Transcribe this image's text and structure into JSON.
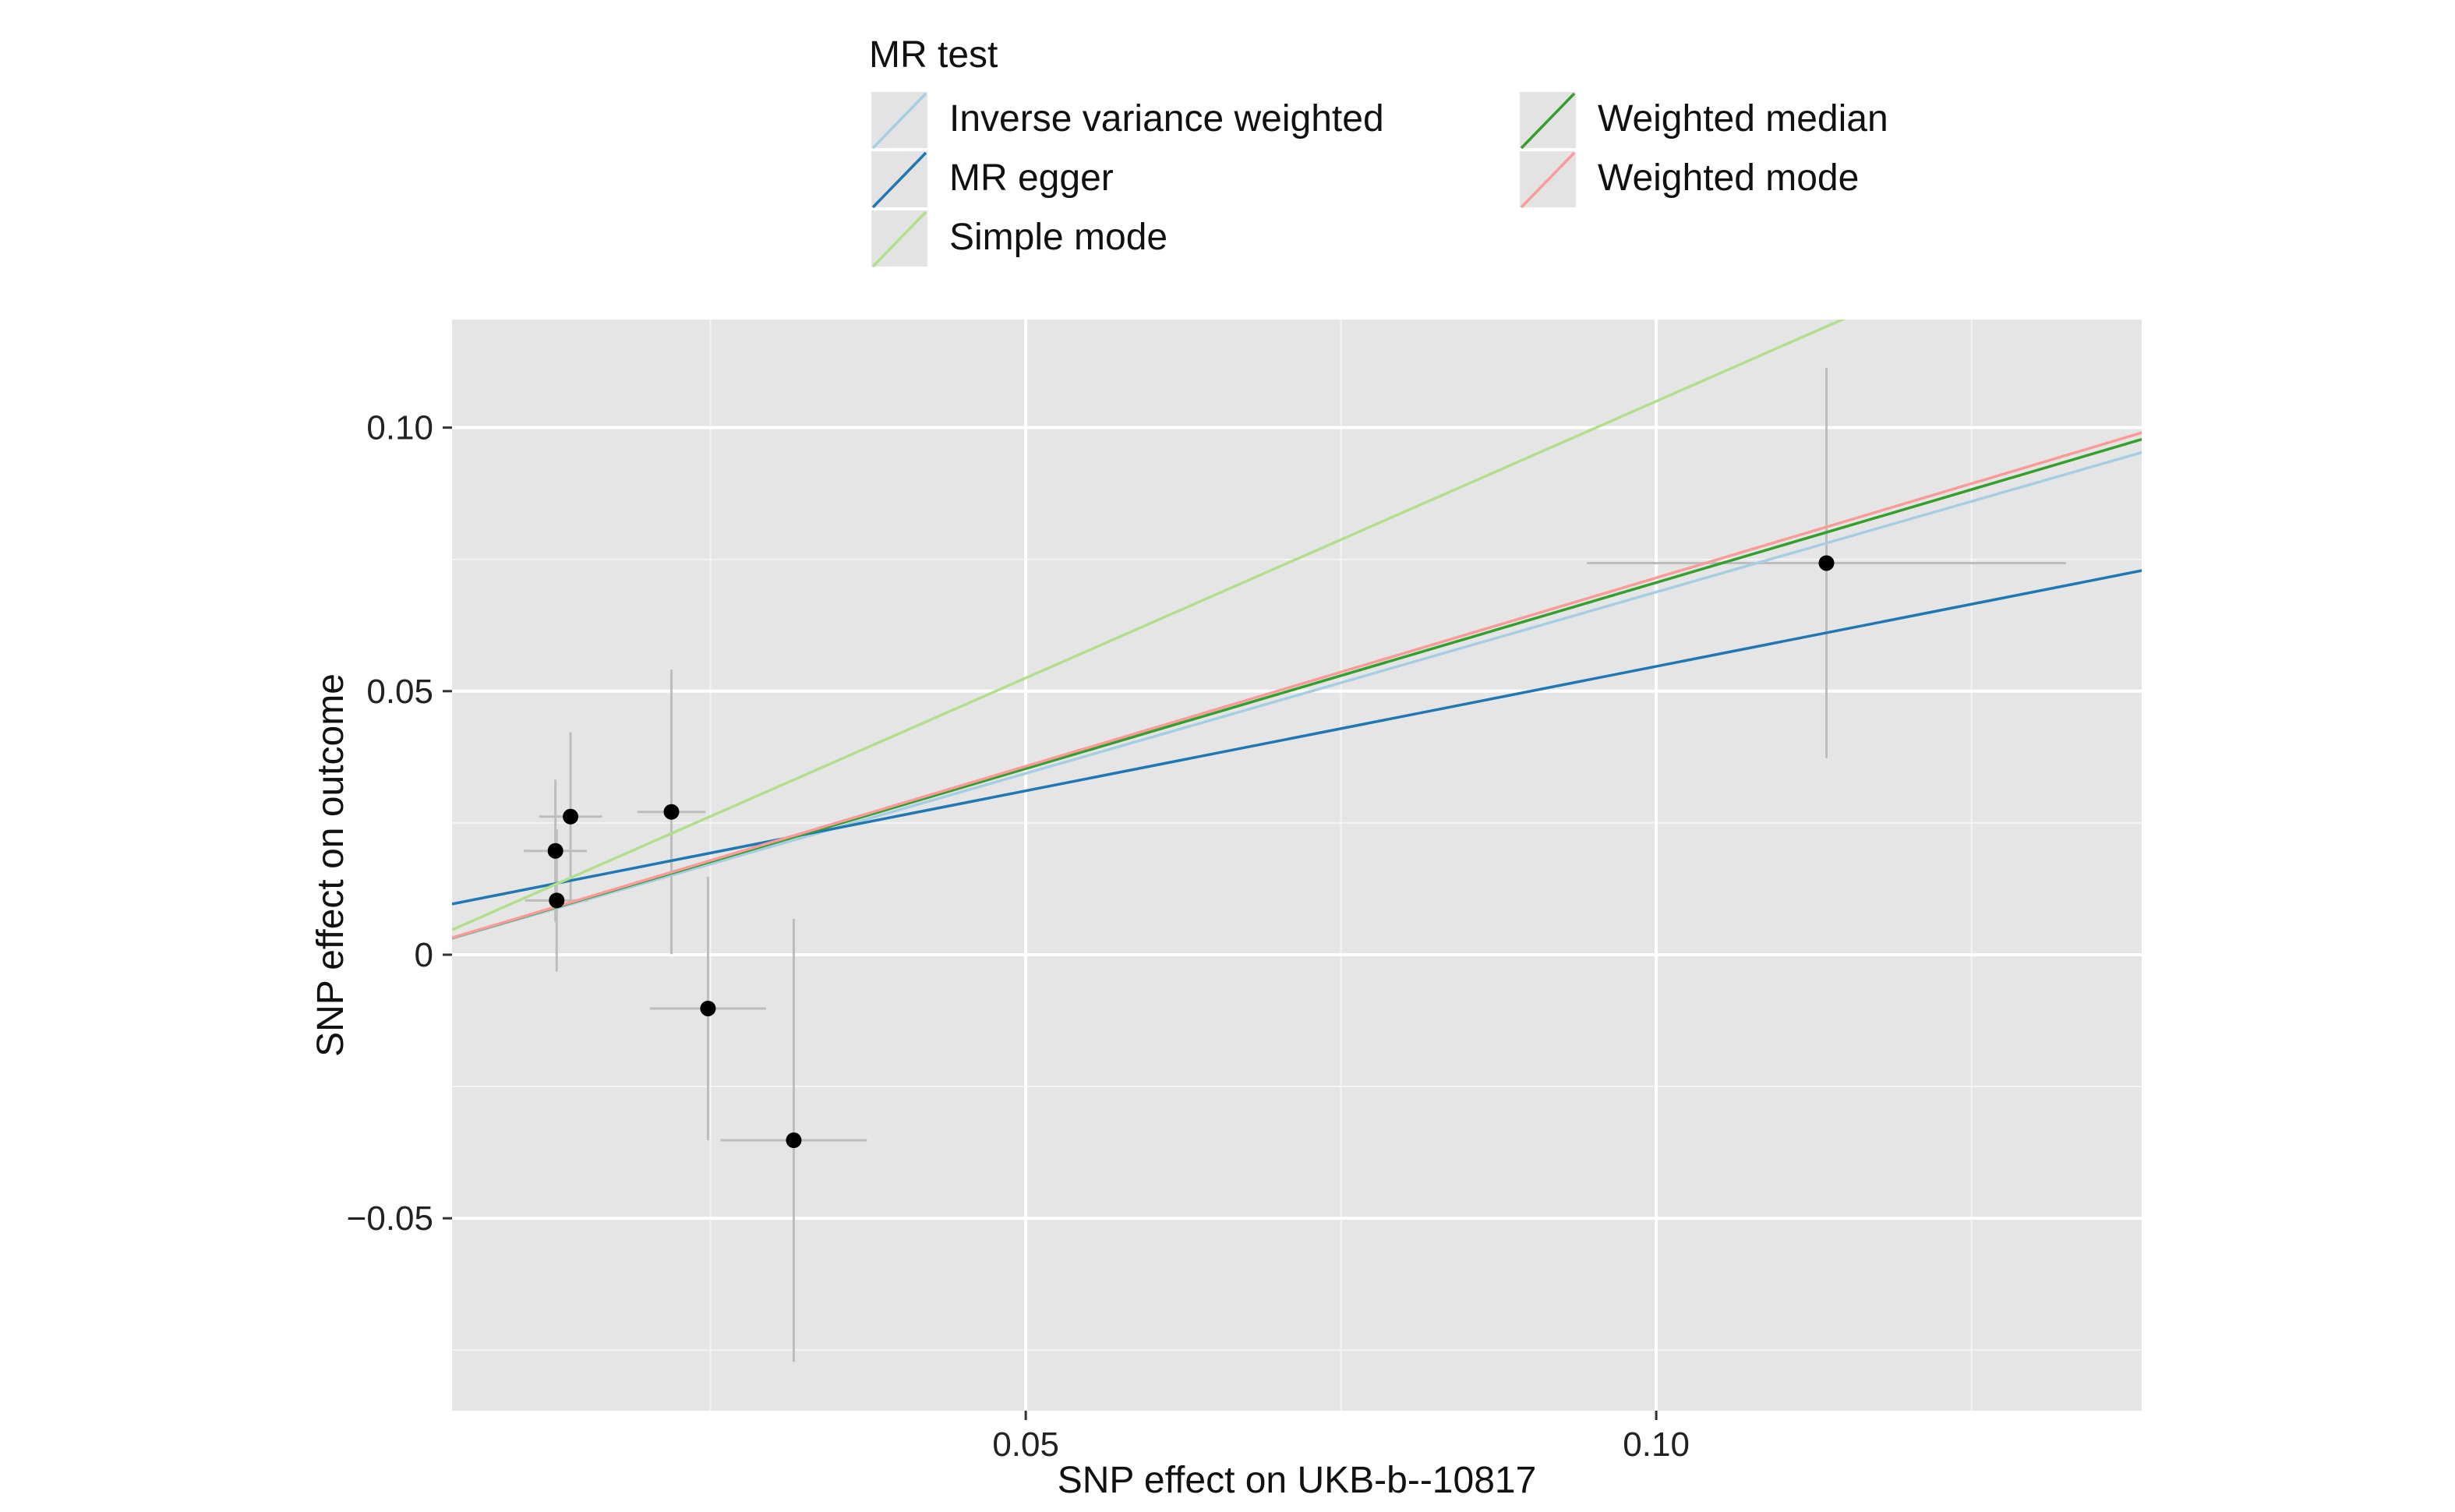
{
  "chart_data": {
    "type": "scatter",
    "xlabel": "SNP effect on UKB-b--10817",
    "ylabel": "SNP effect on outcome",
    "xlim": [
      0.0045,
      0.1385
    ],
    "ylim": [
      -0.0865,
      0.1205
    ],
    "xticks": [
      {
        "value": 0.05,
        "label": "0.05"
      },
      {
        "value": 0.1,
        "label": "0.10"
      }
    ],
    "xminor": [
      0.025,
      0.075,
      0.125
    ],
    "yticks": [
      {
        "value": -0.05,
        "label": "−0.05"
      },
      {
        "value": 0,
        "label": "0"
      },
      {
        "value": 0.05,
        "label": "0.05"
      },
      {
        "value": 0.1,
        "label": "0.10"
      }
    ],
    "yminor": [
      -0.075,
      -0.025,
      0.025,
      0.075
    ],
    "grid": true,
    "points": [
      {
        "x": 0.0127,
        "y": 0.0197,
        "xerr": 0.0025,
        "yerr": 0.0135
      },
      {
        "x": 0.0128,
        "y": 0.0103,
        "xerr": 0.0025,
        "yerr": 0.0135
      },
      {
        "x": 0.0139,
        "y": 0.0262,
        "xerr": 0.0025,
        "yerr": 0.016
      },
      {
        "x": 0.0219,
        "y": 0.0271,
        "xerr": 0.0027,
        "yerr": 0.027
      },
      {
        "x": 0.0248,
        "y": -0.0102,
        "xerr": 0.0046,
        "yerr": 0.025
      },
      {
        "x": 0.0316,
        "y": -0.0352,
        "xerr": 0.0058,
        "yerr": 0.042
      },
      {
        "x": 0.1135,
        "y": 0.0743,
        "xerr": 0.019,
        "yerr": 0.037
      }
    ],
    "legend": {
      "title": "MR test",
      "placement": "top"
    },
    "series": [
      {
        "name": "Inverse variance weighted",
        "intercept": 0,
        "slope": 0.688,
        "color": "#a6cee3"
      },
      {
        "name": "MR egger",
        "intercept": 0.0075,
        "slope": 0.472,
        "color": "#1f78b4"
      },
      {
        "name": "Simple mode",
        "intercept": 0,
        "slope": 1.05,
        "color": "#b2df8a"
      },
      {
        "name": "Weighted median",
        "intercept": 0,
        "slope": 0.706,
        "color": "#33a02c"
      },
      {
        "name": "Weighted mode",
        "intercept": 0,
        "slope": 0.715,
        "color": "#fb9a99"
      }
    ]
  }
}
